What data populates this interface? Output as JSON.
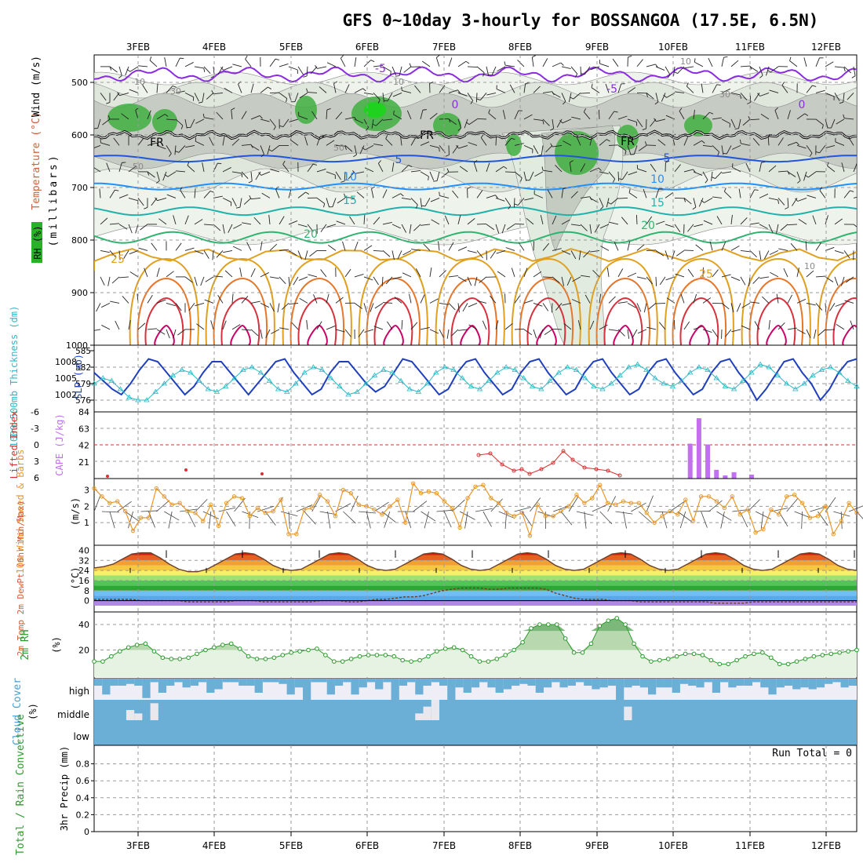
{
  "title": "GFS 0~10day 3-hourly for BOSSANGOA (17.5E, 6.5N)",
  "date_labels": [
    "3FEB",
    "4FEB",
    "5FEB",
    "6FEB",
    "7FEB",
    "8FEB",
    "9FEB",
    "10FEB",
    "11FEB",
    "12FEB"
  ],
  "colors": {
    "frame": "#000000",
    "grid": "#9a9a9a",
    "rh_fill": "#d3d8d0",
    "rh_high": "#3fae3f",
    "purple": "#8a2be2",
    "freeze": "#000000",
    "blue5": "#2255dd",
    "blue10": "#1e90ff",
    "teal15": "#20b2aa",
    "green20": "#2fb470",
    "orange25": "#e0a020",
    "orange30": "#e8762a",
    "red35": "#d8303c",
    "magenta": "#cc0066",
    "slp": "#1f3fbf",
    "thick": "#2bbac8",
    "li": "#d83030",
    "cape": "#c070f0",
    "wind": "#e8982a",
    "rh2m": "#2f9a2f",
    "cloud": "#6baed6",
    "cloud_low_bg": "#efeef7"
  },
  "panels": {
    "cross_section": {
      "y_axis_label": "(millibars)",
      "side_labels": [
        "RH (%)",
        "Temperature (°C)",
        "Wind (m/s)"
      ],
      "pressure_ticks": [
        "500",
        "600",
        "700",
        "800",
        "900",
        "1000"
      ],
      "contour_labels": [
        "-5",
        "-5",
        "0",
        "0",
        "5",
        "5",
        "10",
        "10",
        "15",
        "15",
        "20",
        "20",
        "25",
        "25",
        "FR",
        "FR",
        "FR"
      ],
      "gray_labels": [
        "10",
        "10",
        "30",
        "30",
        "50",
        "50",
        "10",
        "10"
      ]
    },
    "slp_thickness": {
      "left_label": "1000-500mb Thickness (dm)",
      "right_label": "SLP (mb)",
      "left_ticks": [
        "585",
        "582",
        "579",
        "576"
      ],
      "right_ticks": [
        "1008",
        "1005",
        "1002"
      ]
    },
    "lifted_cape": {
      "left_label": "Lifted Index",
      "right_label": "CAPE (J/kg)",
      "left_ticks": [
        "-6",
        "-3",
        "0",
        "3",
        "6"
      ],
      "right_ticks": [
        "84",
        "63",
        "42",
        "21"
      ]
    },
    "wind10m": {
      "left_label": "10m Wind Speed & Barbs",
      "unit": "(m/s)",
      "ticks": [
        "3",
        "2",
        "1"
      ]
    },
    "temp2m": {
      "left_label": "2m Temp 2m DewPt (6hr Min/Max)",
      "unit": "(°C)",
      "ticks": [
        "40",
        "32",
        "24",
        "16",
        "8",
        "0"
      ]
    },
    "rh2m": {
      "left_label": "2m RH",
      "unit": "(%)",
      "ticks": [
        "40",
        "20"
      ]
    },
    "cloud": {
      "left_label": "Cloud Cover",
      "unit": "(%)",
      "levels": [
        "high",
        "middle",
        "low"
      ]
    },
    "precip": {
      "left_label": "Total / Rain Convective",
      "unit": "3hr Precip (mm)",
      "ticks": [
        "0.8",
        "0.6",
        "0.4",
        "0.2",
        "0"
      ],
      "run_total": "Run Total = 0"
    }
  },
  "chart_data": [
    {
      "type": "line",
      "name": "slp",
      "ylabel": "SLP (mb)",
      "ylim": [
        1000,
        1010
      ],
      "values": [
        1006,
        1004.5,
        1003,
        1002,
        1004,
        1006.5,
        1008.5,
        1008,
        1006,
        1004,
        1002,
        1003.5,
        1006,
        1008,
        1008,
        1006,
        1004,
        1002,
        1004,
        1006,
        1008,
        1008.5,
        1006,
        1004,
        1002,
        1003,
        1006,
        1008,
        1008,
        1006,
        1004,
        1002.5,
        1003.5,
        1006,
        1008.5,
        1008,
        1006,
        1004,
        1002,
        1003,
        1006,
        1008,
        1008.5,
        1006,
        1004,
        1002,
        1003,
        1006,
        1008,
        1008.5,
        1006,
        1004,
        1002,
        1003,
        1006,
        1008,
        1008.5,
        1006,
        1004,
        1002,
        1003,
        1006,
        1008,
        1008.5,
        1006,
        1004,
        1002,
        1003,
        1006,
        1008,
        1008.5,
        1006,
        1004,
        1001,
        1003,
        1005.5,
        1008,
        1008.5,
        1006,
        1004,
        1001,
        1003,
        1006,
        1008,
        1008.5
      ]
    },
    {
      "type": "line",
      "name": "thickness",
      "ylabel": "Thickness (dm)",
      "ylim": [
        575,
        585
      ],
      "values": [
        579,
        580,
        579.5,
        578,
        576.5,
        576,
        576,
        577.5,
        579,
        580.5,
        581.5,
        581,
        579.5,
        578,
        577.5,
        578.5,
        580,
        581.5,
        582,
        581,
        579.5,
        578,
        577.5,
        579,
        581,
        582,
        581.5,
        580,
        578.5,
        577,
        577.5,
        579,
        580.5,
        581.5,
        581,
        579.5,
        578,
        577.5,
        579,
        581,
        582,
        581.5,
        580,
        578.5,
        578,
        579.5,
        581,
        582,
        581.5,
        580,
        578.5,
        578,
        579.5,
        581,
        582,
        581.5,
        580,
        578.5,
        578,
        579,
        580.5,
        582,
        582.5,
        581.5,
        580,
        579,
        578.5,
        579.5,
        581,
        582,
        581.5,
        580,
        578.5,
        578,
        579.5,
        581,
        582.5,
        582,
        580.5,
        579,
        578,
        579,
        580.5,
        581.5,
        582,
        581,
        579.5,
        578.5
      ]
    },
    {
      "type": "bar",
      "name": "cape",
      "ylabel": "CAPE (J/kg)",
      "ylim": [
        0,
        84
      ],
      "values": [
        0,
        0,
        0,
        0,
        0,
        0,
        0,
        0,
        0,
        0,
        0,
        0,
        0,
        0,
        0,
        0,
        0,
        0,
        0,
        0,
        0,
        0,
        0,
        0,
        0,
        0,
        0,
        0,
        0,
        0,
        0,
        0,
        0,
        0,
        0,
        0,
        0,
        0,
        0,
        0,
        0,
        0,
        0,
        0,
        0,
        0,
        0,
        0,
        0,
        0,
        0,
        0,
        0,
        0,
        0,
        0,
        0,
        0,
        0,
        0,
        0,
        0,
        0,
        0,
        0,
        0,
        0,
        0,
        44,
        76,
        43,
        11,
        4,
        8,
        0,
        5,
        0,
        0,
        0,
        0,
        0,
        0,
        0,
        0,
        0,
        0,
        0,
        0
      ]
    },
    {
      "type": "line",
      "name": "wind_speed_10m",
      "ylabel": "(m/s)",
      "ylim": [
        0,
        3.6
      ],
      "values": [
        3.1,
        2.6,
        2.2,
        2.3,
        1.7,
        0.5,
        1.3,
        1.3,
        3.1,
        2.6,
        2.1,
        2.2,
        1.7,
        1.6,
        1.1,
        2.1,
        0.8,
        2.2,
        2.6,
        2.5,
        1.4,
        1.9,
        1.6,
        1.7,
        2.4,
        0.3,
        0.3,
        1.8,
        1.9,
        2.7,
        2.3,
        1.4,
        3.0,
        2.8,
        2.1,
        2.0,
        1.8,
        1.5,
        2.0,
        2.4,
        1.0,
        3.4,
        2.8,
        2.9,
        2.8,
        2.3,
        1.9,
        0.7,
        2.5,
        3.2,
        3.3,
        2.5,
        2.2,
        1.6,
        1.4,
        1.6,
        0.2,
        2.1,
        1.4,
        1.4,
        1.7,
        2.0,
        2.7,
        2.2,
        2.5,
        3.3,
        2.2,
        2.1,
        2.3,
        2.2,
        2.2,
        1.6,
        1.0,
        1.4,
        1.7,
        1.5,
        2.4,
        1.1,
        2.6,
        2.6,
        2.3,
        1.9,
        2.6,
        1.5,
        1.8,
        0.4,
        0.6,
        1.8,
        1.5,
        2.6,
        2.7,
        2.2,
        1.3,
        1.4,
        2.0,
        0.3,
        1.1,
        2.2,
        1.6
      ]
    },
    {
      "type": "line",
      "name": "rh_2m",
      "ylabel": "(%)",
      "ylim": [
        0,
        48
      ],
      "values": [
        11,
        11,
        15,
        19,
        22,
        24,
        25,
        19,
        14,
        13,
        13,
        14,
        17,
        20,
        22,
        24,
        25,
        21,
        15,
        13,
        13,
        14,
        16,
        18,
        19,
        20,
        21,
        16,
        11,
        11,
        13,
        15,
        16,
        16,
        16,
        15,
        12,
        11,
        12,
        15,
        19,
        21,
        22,
        20,
        15,
        11,
        11,
        13,
        16,
        20,
        26,
        37,
        40,
        40,
        40,
        29,
        18,
        18,
        25,
        39,
        43,
        45,
        40,
        25,
        15,
        11,
        12,
        13,
        15,
        17,
        17,
        16,
        12,
        9,
        9,
        12,
        15,
        17,
        18,
        14,
        9,
        9,
        11,
        13,
        15,
        16,
        17,
        18,
        19,
        20
      ]
    },
    {
      "type": "area",
      "name": "temperature_2m_band",
      "ylabel": "(°C)",
      "ylim": [
        -4,
        44
      ],
      "series": [
        {
          "name": "temperature",
          "values": [
            26,
            27,
            29,
            33,
            37,
            38,
            38,
            34,
            29,
            25,
            23,
            23,
            25,
            29,
            33,
            37,
            38,
            37,
            33,
            28,
            25,
            24,
            25,
            29,
            33,
            37,
            38,
            37,
            33,
            28,
            25,
            24,
            25,
            29,
            33,
            37,
            38,
            37,
            33,
            28,
            25,
            24,
            25,
            29,
            33,
            37,
            38,
            37,
            33,
            28,
            25,
            24,
            25,
            29,
            33,
            37,
            38,
            37,
            33,
            28,
            25,
            24,
            25,
            29,
            33,
            37,
            38,
            37,
            33,
            28,
            25,
            24,
            25,
            29,
            33,
            37,
            38,
            37,
            33,
            28,
            25,
            24
          ]
        },
        {
          "name": "dewpoint",
          "values": [
            1,
            1,
            1,
            1,
            1,
            0,
            0,
            0,
            0,
            0,
            -1,
            -1,
            -1,
            -1,
            -1,
            0,
            0,
            0,
            -1,
            -1,
            -1,
            -1,
            -1,
            -1,
            0,
            0,
            0,
            -1,
            -1,
            0,
            1,
            1,
            2,
            3,
            3,
            4,
            6,
            8,
            9,
            10,
            10,
            10,
            9,
            9,
            10,
            10,
            10,
            10,
            9,
            6,
            4,
            2,
            1,
            1,
            1,
            0,
            0,
            0,
            -1,
            -1,
            -1,
            -1,
            -1,
            -1,
            -1,
            -1,
            -2,
            -2,
            -2,
            -2,
            -1,
            -1,
            -1,
            -1,
            -1,
            -1,
            -1,
            -1,
            -1,
            -1,
            -1,
            -1
          ]
        }
      ]
    },
    {
      "type": "bar",
      "name": "cloud_cover",
      "ylabel": "(%)",
      "ylim": [
        0,
        100
      ],
      "series": [
        {
          "name": "high",
          "values": [
            20,
            45,
            20,
            20,
            15,
            20,
            55,
            10,
            40,
            20,
            10,
            25,
            20,
            10,
            40,
            30,
            10,
            10,
            20,
            20,
            40,
            10,
            10,
            15,
            45,
            25,
            60,
            10,
            10,
            45,
            20,
            10,
            45,
            25,
            10,
            30,
            10,
            60,
            20,
            10,
            45,
            20,
            10,
            20,
            60,
            25,
            40,
            25,
            10,
            25,
            40,
            30,
            20,
            15,
            20,
            40,
            25,
            10,
            25,
            20,
            10,
            20,
            30,
            25,
            20,
            60,
            25,
            20,
            25,
            45,
            25,
            25,
            40,
            15,
            20,
            25,
            10,
            40,
            10,
            25,
            20,
            20,
            10,
            25,
            45,
            25,
            20,
            30,
            25,
            30,
            25,
            15,
            10,
            25,
            20
          ]
        },
        {
          "name": "middle",
          "values": [
            0,
            0,
            0,
            0,
            30,
            20,
            0,
            50,
            0,
            0,
            0,
            0,
            0,
            0,
            0,
            0,
            0,
            0,
            0,
            0,
            0,
            0,
            0,
            0,
            0,
            0,
            0,
            0,
            0,
            0,
            0,
            0,
            0,
            0,
            0,
            0,
            0,
            0,
            0,
            0,
            20,
            40,
            60,
            0,
            0,
            0,
            0,
            0,
            0,
            0,
            0,
            0,
            0,
            0,
            0,
            0,
            0,
            0,
            0,
            0,
            0,
            0,
            0,
            0,
            0,
            0,
            40,
            0,
            0,
            0,
            0,
            0,
            0,
            0,
            0,
            0,
            0,
            0,
            0,
            0,
            0,
            0,
            0,
            0,
            0,
            0,
            0,
            0,
            0,
            0,
            0,
            0,
            0,
            0,
            0
          ]
        },
        {
          "name": "low",
          "values": [
            0,
            0,
            0,
            0,
            0,
            0,
            0,
            0,
            0,
            0,
            0,
            0,
            0,
            0,
            0,
            0,
            0,
            0,
            0,
            0,
            0,
            0,
            0,
            0,
            0,
            0,
            0,
            0,
            0,
            0,
            0,
            0,
            0,
            0,
            0,
            0,
            0,
            0,
            0,
            0,
            0,
            0,
            0,
            0,
            0,
            0,
            0,
            0,
            0,
            0,
            0,
            0,
            0,
            0,
            0,
            0,
            0,
            0,
            0,
            0,
            0,
            0,
            0,
            0,
            0,
            0,
            0,
            0,
            0,
            0,
            0,
            0,
            0,
            0,
            0,
            0,
            0,
            0,
            0,
            0,
            0,
            0,
            0,
            0,
            0,
            0,
            0,
            0,
            0,
            0,
            0,
            0,
            0,
            0,
            0
          ]
        }
      ]
    },
    {
      "type": "bar",
      "name": "precip_3hr",
      "ylabel": "3hr Precip (mm)",
      "ylim": [
        0,
        1
      ],
      "values": []
    }
  ]
}
